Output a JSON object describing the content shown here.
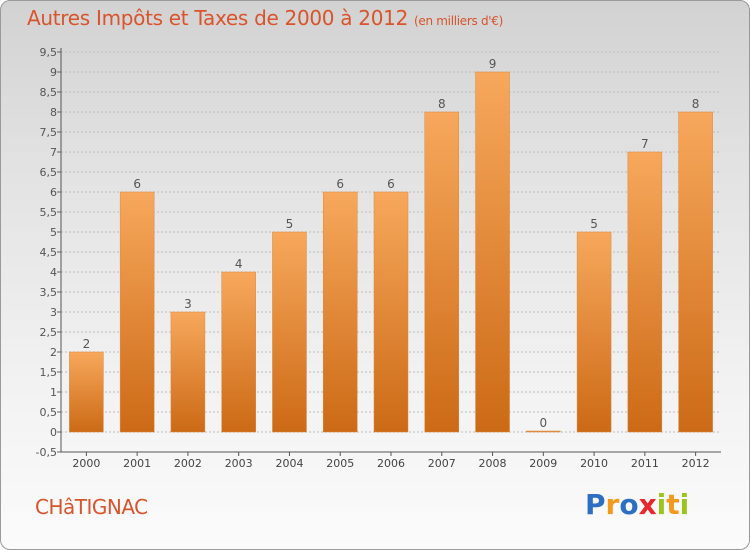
{
  "title": "Autres Impôts et Taxes de 2000 à 2012",
  "subtitle": "(en milliers d'€)",
  "commune": "CHâTIGNAC",
  "logo": {
    "text": "Proxiti",
    "letter_colors": [
      "#2e6fc4",
      "#f39a1e",
      "#2e6fc4",
      "#e8262c",
      "#9bc41f",
      "#f39a1e",
      "#9bc41f"
    ]
  },
  "colors": {
    "title": "#d9532b",
    "bar_light": "#f7a85c",
    "bar_dark": "#cc6a16",
    "grid": "#bcbcbc"
  },
  "chart_data": {
    "type": "bar",
    "categories": [
      "2000",
      "2001",
      "2002",
      "2003",
      "2004",
      "2005",
      "2006",
      "2007",
      "2008",
      "2009",
      "2010",
      "2011",
      "2012"
    ],
    "values": [
      2,
      6,
      3,
      4,
      5,
      6,
      6,
      8,
      9,
      0,
      5,
      7,
      8
    ],
    "ylim": [
      -0.5,
      9.5
    ],
    "yticks": [
      "-0,5",
      "0",
      "0,5",
      "1",
      "1,5",
      "2",
      "2,5",
      "3",
      "3,5",
      "4",
      "4,5",
      "5",
      "5,5",
      "6",
      "6,5",
      "7",
      "7,5",
      "8",
      "8,5",
      "9",
      "9,5"
    ],
    "grid": true,
    "xlabel": "",
    "ylabel": ""
  }
}
